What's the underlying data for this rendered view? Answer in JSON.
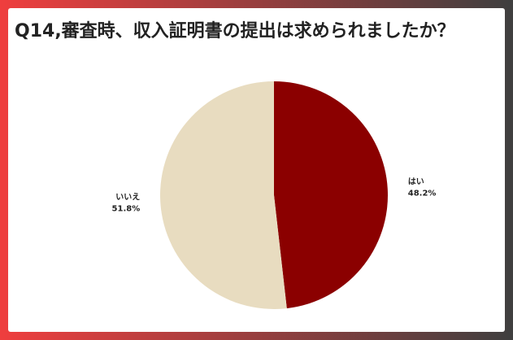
{
  "chart_data": {
    "type": "pie",
    "title": "Q14,審査時、収入証明書の提出は求められましたか？",
    "categories": [
      "はい",
      "いいえ"
    ],
    "values": [
      48.2,
      51.8
    ],
    "value_labels": [
      "48.2%",
      "51.8%"
    ],
    "colors": [
      "#8b0000",
      "#e8dcc0"
    ]
  }
}
